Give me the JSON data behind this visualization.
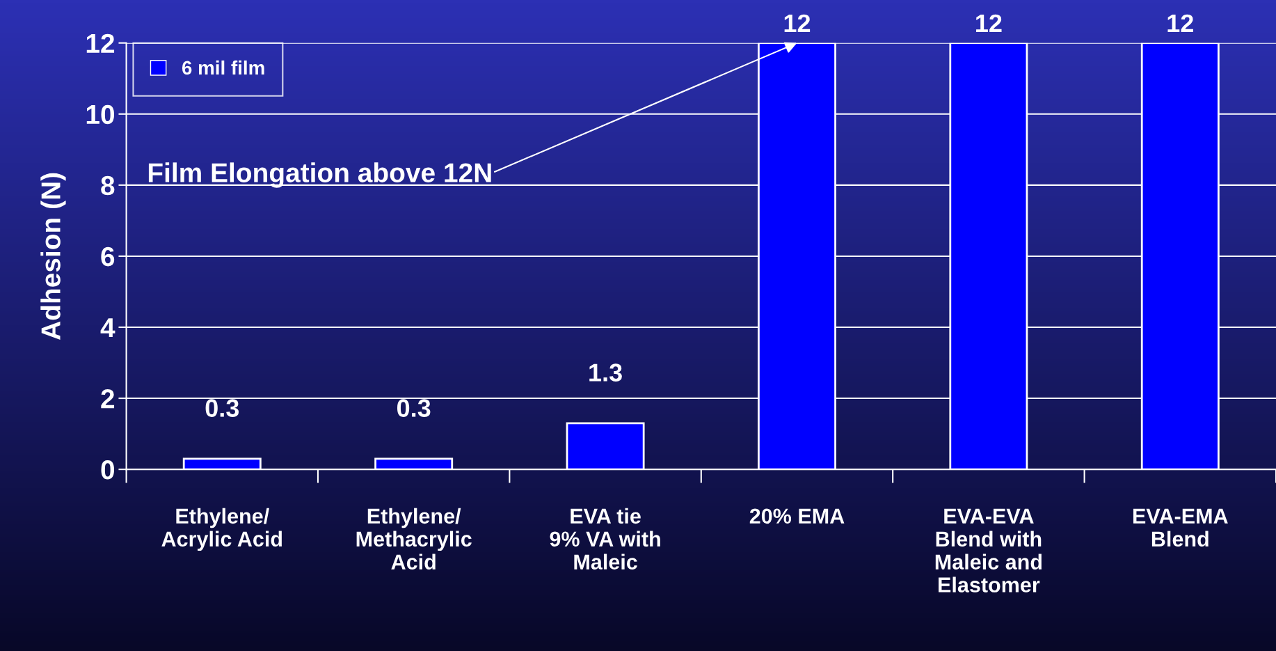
{
  "chart_data": {
    "type": "bar",
    "ylabel": "Adhesion (N)",
    "categories": [
      "Ethylene/\nAcrylic Acid",
      "Ethylene/\nMethacrylic\nAcid",
      "EVA tie\n9% VA with\nMaleic",
      "20% EMA",
      "EVA-EVA\nBlend with\nMaleic and\nElastomer",
      "EVA-EMA\nBlend"
    ],
    "series": [
      {
        "name": "6 mil film",
        "color": "#0000ff",
        "values": [
          0.3,
          0.3,
          1.3,
          12,
          12,
          12
        ]
      }
    ],
    "ylim": [
      0,
      12
    ],
    "yticks": [
      0,
      2,
      4,
      6,
      8,
      10,
      12
    ],
    "grid": "y",
    "legend": "top left",
    "data_labels": true,
    "annotations": [
      {
        "text": "Film Elongation above 12N",
        "x": "20% EMA",
        "y": 12
      }
    ]
  }
}
